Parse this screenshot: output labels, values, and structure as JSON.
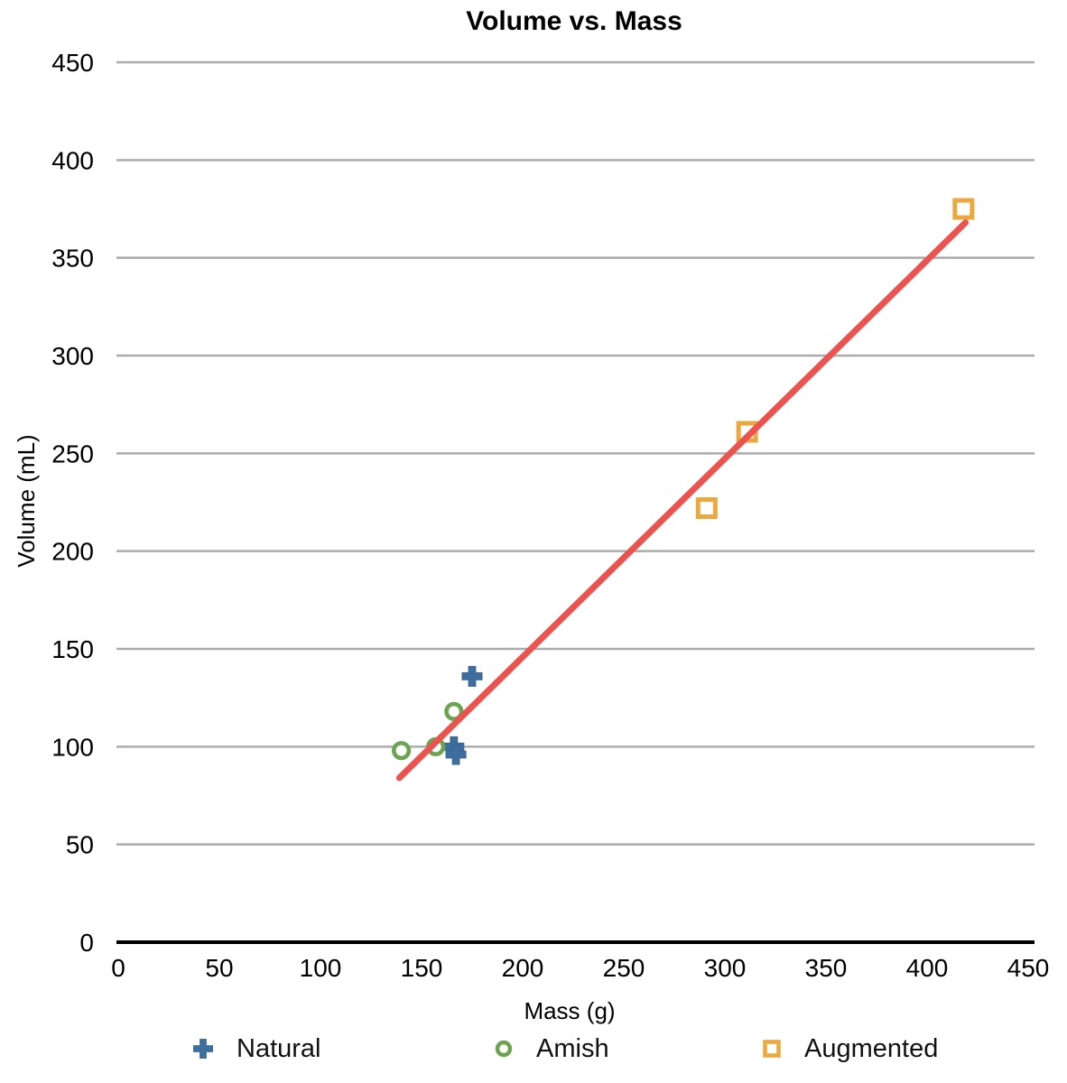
{
  "chart_data": {
    "type": "scatter",
    "title": "Volume vs. Mass",
    "xlabel": "Mass (g)",
    "ylabel": "Volume (mL)",
    "xlim": [
      0,
      450
    ],
    "ylim": [
      0,
      450
    ],
    "xticks": [
      0,
      50,
      100,
      150,
      200,
      250,
      300,
      350,
      400,
      450
    ],
    "yticks": [
      0,
      50,
      100,
      150,
      200,
      250,
      300,
      350,
      400,
      450
    ],
    "grid": "horizontal-only",
    "gridline_color": "#ABABAB",
    "axis_color": "#000000",
    "legend_position": "bottom",
    "series": [
      {
        "name": "Natural",
        "marker": "plus",
        "color": "#3D6E9E",
        "points": [
          [
            175,
            136
          ],
          [
            166,
            100
          ],
          [
            167,
            96
          ]
        ]
      },
      {
        "name": "Amish",
        "marker": "circle",
        "color": "#6BA351",
        "points": [
          [
            140,
            98
          ],
          [
            157,
            100
          ],
          [
            166,
            118
          ]
        ]
      },
      {
        "name": "Augmented",
        "marker": "square",
        "color": "#EBA83E",
        "points": [
          [
            291,
            222
          ],
          [
            311,
            261
          ],
          [
            418,
            375
          ]
        ]
      }
    ],
    "trendline": {
      "color": "#EC534F",
      "from": [
        139,
        84
      ],
      "to": [
        419,
        368
      ]
    }
  }
}
